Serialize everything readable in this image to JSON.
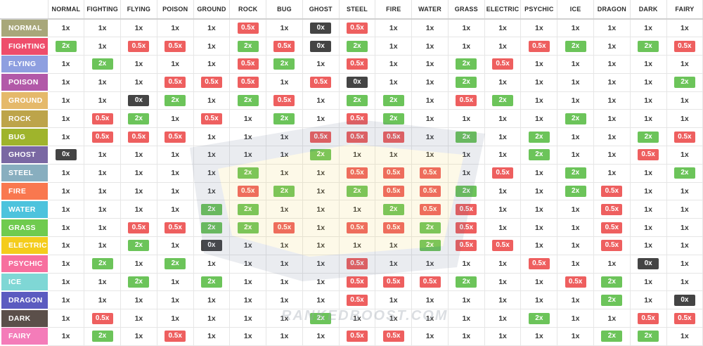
{
  "chart_data": {
    "type": "table",
    "title": "",
    "columns": [
      "NORMAL",
      "FIGHTING",
      "FLYING",
      "POISON",
      "GROUND",
      "ROCK",
      "BUG",
      "GHOST",
      "STEEL",
      "FIRE",
      "WATER",
      "GRASS",
      "ELECTRIC",
      "PSYCHIC",
      "ICE",
      "DRAGON",
      "DARK",
      "FAIRY"
    ],
    "rows": [
      {
        "type": "NORMAL",
        "values": [
          "1x",
          "1x",
          "1x",
          "1x",
          "1x",
          "0.5x",
          "1x",
          "0x",
          "0.5x",
          "1x",
          "1x",
          "1x",
          "1x",
          "1x",
          "1x",
          "1x",
          "1x",
          "1x"
        ]
      },
      {
        "type": "FIGHTING",
        "values": [
          "2x",
          "1x",
          "0.5x",
          "0.5x",
          "1x",
          "2x",
          "0.5x",
          "0x",
          "2x",
          "1x",
          "1x",
          "1x",
          "1x",
          "0.5x",
          "2x",
          "1x",
          "2x",
          "0.5x"
        ]
      },
      {
        "type": "FLYING",
        "values": [
          "1x",
          "2x",
          "1x",
          "1x",
          "1x",
          "0.5x",
          "2x",
          "1x",
          "0.5x",
          "1x",
          "1x",
          "2x",
          "0.5x",
          "1x",
          "1x",
          "1x",
          "1x",
          "1x"
        ]
      },
      {
        "type": "POISON",
        "values": [
          "1x",
          "1x",
          "1x",
          "0.5x",
          "0.5x",
          "0.5x",
          "1x",
          "0.5x",
          "0x",
          "1x",
          "1x",
          "2x",
          "1x",
          "1x",
          "1x",
          "1x",
          "1x",
          "2x"
        ]
      },
      {
        "type": "GROUND",
        "values": [
          "1x",
          "1x",
          "0x",
          "2x",
          "1x",
          "2x",
          "0.5x",
          "1x",
          "2x",
          "2x",
          "1x",
          "0.5x",
          "2x",
          "1x",
          "1x",
          "1x",
          "1x",
          "1x"
        ]
      },
      {
        "type": "ROCK",
        "values": [
          "1x",
          "0.5x",
          "2x",
          "1x",
          "0.5x",
          "1x",
          "2x",
          "1x",
          "0.5x",
          "2x",
          "1x",
          "1x",
          "1x",
          "1x",
          "2x",
          "1x",
          "1x",
          "1x"
        ]
      },
      {
        "type": "BUG",
        "values": [
          "1x",
          "0.5x",
          "0.5x",
          "0.5x",
          "1x",
          "1x",
          "1x",
          "0.5x",
          "0.5x",
          "0.5x",
          "1x",
          "2x",
          "1x",
          "2x",
          "1x",
          "1x",
          "2x",
          "0.5x"
        ]
      },
      {
        "type": "GHOST",
        "values": [
          "0x",
          "1x",
          "1x",
          "1x",
          "1x",
          "1x",
          "1x",
          "2x",
          "1x",
          "1x",
          "1x",
          "1x",
          "1x",
          "2x",
          "1x",
          "1x",
          "0.5x",
          "1x"
        ]
      },
      {
        "type": "STEEL",
        "values": [
          "1x",
          "1x",
          "1x",
          "1x",
          "1x",
          "2x",
          "1x",
          "1x",
          "0.5x",
          "0.5x",
          "0.5x",
          "1x",
          "0.5x",
          "1x",
          "2x",
          "1x",
          "1x",
          "2x"
        ]
      },
      {
        "type": "FIRE",
        "values": [
          "1x",
          "1x",
          "1x",
          "1x",
          "1x",
          "0.5x",
          "2x",
          "1x",
          "2x",
          "0.5x",
          "0.5x",
          "2x",
          "1x",
          "1x",
          "2x",
          "0.5x",
          "1x",
          "1x"
        ]
      },
      {
        "type": "WATER",
        "values": [
          "1x",
          "1x",
          "1x",
          "1x",
          "2x",
          "2x",
          "1x",
          "1x",
          "1x",
          "2x",
          "0.5x",
          "0.5x",
          "1x",
          "1x",
          "1x",
          "0.5x",
          "1x",
          "1x"
        ]
      },
      {
        "type": "GRASS",
        "values": [
          "1x",
          "1x",
          "0.5x",
          "0.5x",
          "2x",
          "2x",
          "0.5x",
          "1x",
          "0.5x",
          "0.5x",
          "2x",
          "0.5x",
          "1x",
          "1x",
          "1x",
          "0.5x",
          "1x",
          "1x"
        ]
      },
      {
        "type": "ELECTRIC",
        "values": [
          "1x",
          "1x",
          "2x",
          "1x",
          "0x",
          "1x",
          "1x",
          "1x",
          "1x",
          "1x",
          "2x",
          "0.5x",
          "0.5x",
          "1x",
          "1x",
          "0.5x",
          "1x",
          "1x"
        ]
      },
      {
        "type": "PSYCHIC",
        "values": [
          "1x",
          "2x",
          "1x",
          "2x",
          "1x",
          "1x",
          "1x",
          "1x",
          "0.5x",
          "1x",
          "1x",
          "1x",
          "1x",
          "0.5x",
          "1x",
          "1x",
          "0x",
          "1x"
        ]
      },
      {
        "type": "ICE",
        "values": [
          "1x",
          "1x",
          "2x",
          "1x",
          "2x",
          "1x",
          "1x",
          "1x",
          "0.5x",
          "0.5x",
          "0.5x",
          "2x",
          "1x",
          "1x",
          "0.5x",
          "2x",
          "1x",
          "1x"
        ]
      },
      {
        "type": "DRAGON",
        "values": [
          "1x",
          "1x",
          "1x",
          "1x",
          "1x",
          "1x",
          "1x",
          "1x",
          "0.5x",
          "1x",
          "1x",
          "1x",
          "1x",
          "1x",
          "1x",
          "2x",
          "1x",
          "0x"
        ]
      },
      {
        "type": "DARK",
        "values": [
          "1x",
          "0.5x",
          "1x",
          "1x",
          "1x",
          "1x",
          "1x",
          "2x",
          "1x",
          "1x",
          "1x",
          "1x",
          "1x",
          "2x",
          "1x",
          "1x",
          "0.5x",
          "0.5x"
        ]
      },
      {
        "type": "FAIRY",
        "values": [
          "1x",
          "2x",
          "1x",
          "0.5x",
          "1x",
          "1x",
          "1x",
          "1x",
          "0.5x",
          "0.5x",
          "1x",
          "1x",
          "1x",
          "1x",
          "1x",
          "2x",
          "2x",
          "1x"
        ]
      }
    ]
  },
  "type_colors": {
    "NORMAL": "#a8a77a",
    "FIGHTING": "#ee4d6b",
    "FLYING": "#8e9fe0",
    "POISON": "#b259a8",
    "GROUND": "#e5b96a",
    "ROCK": "#bda44a",
    "BUG": "#9fb42c",
    "GHOST": "#7a68a3",
    "STEEL": "#88aebf",
    "FIRE": "#f9784f",
    "WATER": "#4dc3dd",
    "GRASS": "#6fcb4f",
    "ELECTRIC": "#f4cc1c",
    "PSYCHIC": "#f76f9e",
    "ICE": "#7fd7d5",
    "DRAGON": "#5b5bc0",
    "DARK": "#5b4f4a",
    "FAIRY": "#f47cb9"
  },
  "badge_colors": {
    "2x": "#6cc45a",
    "0.5x": "#ee5f5f",
    "0x": "#444444"
  },
  "watermark": {
    "logo_text": "RANKED BOOST",
    "site_text": "RANKEDBOOST.COM"
  }
}
